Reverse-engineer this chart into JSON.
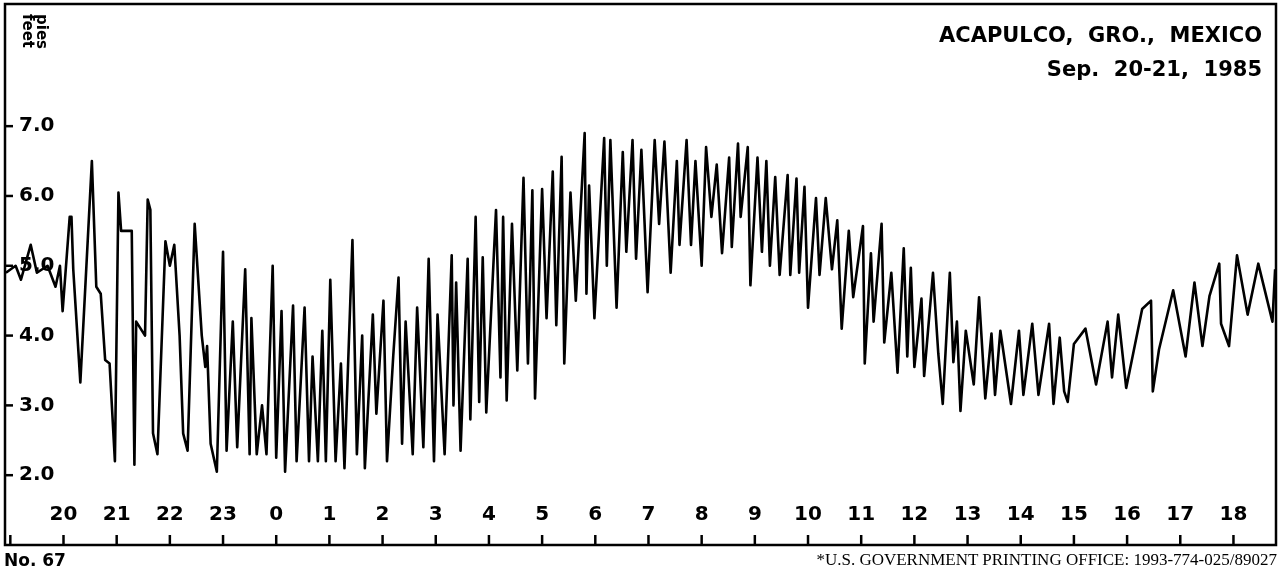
{
  "chart_data": {
    "type": "line",
    "title": "ACAPULCO,  GRO.,  MEXICO",
    "subtitle": "Sep.  20-21,  1985",
    "ylabel": "feet\npies",
    "annotations": [
      "No. 67",
      "*U.S. GOVERNMENT PRINTING OFFICE: 1993-774-025/89027"
    ],
    "color": "#000000",
    "xlim": [
      "1985-09-20T18:54",
      "1985-09-21T18:48"
    ],
    "xticks": [
      {
        "value": "1985-09-20T19:00",
        "label": null
      },
      {
        "value": "1985-09-20T20:00",
        "label": "20"
      },
      {
        "value": "1985-09-20T21:00",
        "label": "21"
      },
      {
        "value": "1985-09-20T22:00",
        "label": "22"
      },
      {
        "value": "1985-09-20T23:00",
        "label": "23"
      },
      {
        "value": "1985-09-21T00:00",
        "label": "0"
      },
      {
        "value": "1985-09-21T01:00",
        "label": "1"
      },
      {
        "value": "1985-09-21T02:00",
        "label": "2"
      },
      {
        "value": "1985-09-21T03:00",
        "label": "3"
      },
      {
        "value": "1985-09-21T04:00",
        "label": "4"
      },
      {
        "value": "1985-09-21T05:00",
        "label": "5"
      },
      {
        "value": "1985-09-21T06:00",
        "label": "6"
      },
      {
        "value": "1985-09-21T07:00",
        "label": "7"
      },
      {
        "value": "1985-09-21T08:00",
        "label": "8"
      },
      {
        "value": "1985-09-21T09:00",
        "label": "9"
      },
      {
        "value": "1985-09-21T10:00",
        "label": "10"
      },
      {
        "value": "1985-09-21T11:00",
        "label": "11"
      },
      {
        "value": "1985-09-21T12:00",
        "label": "12"
      },
      {
        "value": "1985-09-21T13:00",
        "label": "13"
      },
      {
        "value": "1985-09-21T14:00",
        "label": "14"
      },
      {
        "value": "1985-09-21T15:00",
        "label": "15"
      },
      {
        "value": "1985-09-21T16:00",
        "label": "16"
      },
      {
        "value": "1985-09-21T17:00",
        "label": "17"
      },
      {
        "value": "1985-09-21T18:00",
        "label": "18"
      }
    ],
    "ylim": [
      1,
      8.75
    ],
    "yticks": [
      {
        "value": 2,
        "label": "2.0"
      },
      {
        "value": 3,
        "label": "3.0"
      },
      {
        "value": 4,
        "label": "4.0"
      },
      {
        "value": 5,
        "label": "5.0"
      },
      {
        "value": 6,
        "label": "6.0"
      },
      {
        "value": 7,
        "label": "7.0"
      }
    ],
    "x": [
      "1985-09-20T18:55",
      "1985-09-20T19:06",
      "1985-09-20T19:12",
      "1985-09-20T19:23",
      "1985-09-20T19:30",
      "1985-09-20T19:42",
      "1985-09-20T19:51",
      "1985-09-20T19:56",
      "1985-09-20T19:59",
      "1985-09-20T20:07",
      "1985-09-20T20:09",
      "1985-09-20T20:11",
      "1985-09-20T20:19",
      "1985-09-20T20:32",
      "1985-09-20T20:37",
      "1985-09-20T20:42",
      "1985-09-20T20:47",
      "1985-09-20T20:52",
      "1985-09-20T20:58",
      "1985-09-20T21:02",
      "1985-09-20T21:05",
      "1985-09-20T21:17",
      "1985-09-20T21:20",
      "1985-09-20T21:22",
      "1985-09-20T21:32",
      "1985-09-20T21:35",
      "1985-09-20T21:38",
      "1985-09-20T21:41",
      "1985-09-20T21:46",
      "1985-09-20T21:55",
      "1985-09-20T22:00",
      "1985-09-20T22:05",
      "1985-09-20T22:11",
      "1985-09-20T22:15",
      "1985-09-20T22:20",
      "1985-09-20T22:28",
      "1985-09-20T22:36",
      "1985-09-20T22:40",
      "1985-09-20T22:42",
      "1985-09-20T22:46",
      "1985-09-20T22:53",
      "1985-09-20T23:00",
      "1985-09-20T23:04",
      "1985-09-20T23:11",
      "1985-09-20T23:16",
      "1985-09-20T23:25",
      "1985-09-20T23:30",
      "1985-09-20T23:32",
      "1985-09-20T23:38",
      "1985-09-20T23:44",
      "1985-09-20T23:49",
      "1985-09-20T23:56",
      "1985-09-21T00:00",
      "1985-09-21T00:06",
      "1985-09-21T00:10",
      "1985-09-21T00:19",
      "1985-09-21T00:23",
      "1985-09-21T00:32",
      "1985-09-21T00:37",
      "1985-09-21T00:41",
      "1985-09-21T00:47",
      "1985-09-21T00:52",
      "1985-09-21T00:56",
      "1985-09-21T01:01",
      "1985-09-21T01:07",
      "1985-09-21T01:13",
      "1985-09-21T01:17",
      "1985-09-21T01:26",
      "1985-09-21T01:31",
      "1985-09-21T01:37",
      "1985-09-21T01:40",
      "1985-09-21T01:49",
      "1985-09-21T01:53",
      "1985-09-21T02:01",
      "1985-09-21T02:05",
      "1985-09-21T02:12",
      "1985-09-21T02:18",
      "1985-09-21T02:22",
      "1985-09-21T02:26",
      "1985-09-21T02:34",
      "1985-09-21T02:39",
      "1985-09-21T02:46",
      "1985-09-21T02:52",
      "1985-09-21T02:58",
      "1985-09-21T03:02",
      "1985-09-21T03:10",
      "1985-09-21T03:18",
      "1985-09-21T03:20",
      "1985-09-21T03:23",
      "1985-09-21T03:28",
      "1985-09-21T03:36",
      "1985-09-21T03:39",
      "1985-09-21T03:45",
      "1985-09-21T03:49",
      "1985-09-21T03:53",
      "1985-09-21T03:57",
      "1985-09-21T04:08",
      "1985-09-21T04:13",
      "1985-09-21T04:16",
      "1985-09-21T04:20",
      "1985-09-21T04:26",
      "1985-09-21T04:32",
      "1985-09-21T04:39",
      "1985-09-21T04:44",
      "1985-09-21T04:49",
      "1985-09-21T04:52",
      "1985-09-21T05:00",
      "1985-09-21T05:05",
      "1985-09-21T05:12",
      "1985-09-21T05:16",
      "1985-09-21T05:22",
      "1985-09-21T05:25",
      "1985-09-21T05:32",
      "1985-09-21T05:38",
      "1985-09-21T05:48",
      "1985-09-21T05:50",
      "1985-09-21T05:53",
      "1985-09-21T05:59",
      "1985-09-21T06:10",
      "1985-09-21T06:13",
      "1985-09-21T06:17",
      "1985-09-21T06:24",
      "1985-09-21T06:31",
      "1985-09-21T06:35",
      "1985-09-21T06:42",
      "1985-09-21T06:46",
      "1985-09-21T06:52",
      "1985-09-21T06:59",
      "1985-09-21T07:07",
      "1985-09-21T07:12",
      "1985-09-21T07:18",
      "1985-09-21T07:25",
      "1985-09-21T07:32",
      "1985-09-21T07:35",
      "1985-09-21T07:43",
      "1985-09-21T07:48",
      "1985-09-21T07:53",
      "1985-09-21T08:00",
      "1985-09-21T08:05",
      "1985-09-21T08:11",
      "1985-09-21T08:17",
      "1985-09-21T08:23",
      "1985-09-21T08:31",
      "1985-09-21T08:34",
      "1985-09-21T08:41",
      "1985-09-21T08:44",
      "1985-09-21T08:52",
      "1985-09-21T08:55",
      "1985-09-21T09:03",
      "1985-09-21T09:08",
      "1985-09-21T09:13",
      "1985-09-21T09:17",
      "1985-09-21T09:23",
      "1985-09-21T09:28",
      "1985-09-21T09:37",
      "1985-09-21T09:40",
      "1985-09-21T09:47",
      "1985-09-21T09:50",
      "1985-09-21T09:56",
      "1985-09-21T10:00",
      "1985-09-21T10:09",
      "1985-09-21T10:13",
      "1985-09-21T10:20",
      "1985-09-21T10:27",
      "1985-09-21T10:33",
      "1985-09-21T10:38",
      "1985-09-21T10:46",
      "1985-09-21T10:51",
      "1985-09-21T11:02",
      "1985-09-21T11:04",
      "1985-09-21T11:11",
      "1985-09-21T11:14",
      "1985-09-21T11:23",
      "1985-09-21T11:26",
      "1985-09-21T11:34",
      "1985-09-21T11:41",
      "1985-09-21T11:48",
      "1985-09-21T11:52",
      "1985-09-21T11:56",
      "1985-09-21T12:00",
      "1985-09-21T12:08",
      "1985-09-21T12:11",
      "1985-09-21T12:21",
      "1985-09-21T12:27",
      "1985-09-21T12:32",
      "1985-09-21T12:40",
      "1985-09-21T12:44",
      "1985-09-21T12:48",
      "1985-09-21T12:52",
      "1985-09-21T12:58",
      "1985-09-21T13:07",
      "1985-09-21T13:13",
      "1985-09-21T13:20",
      "1985-09-21T13:27",
      "1985-09-21T13:31",
      "1985-09-21T13:37",
      "1985-09-21T13:49",
      "1985-09-21T13:58",
      "1985-09-21T14:03",
      "1985-09-21T14:13",
      "1985-09-21T14:20",
      "1985-09-21T14:32",
      "1985-09-21T14:37",
      "1985-09-21T14:44",
      "1985-09-21T14:49",
      "1985-09-21T14:53",
      "1985-09-21T15:00",
      "1985-09-21T15:13",
      "1985-09-21T15:25",
      "1985-09-21T15:38",
      "1985-09-21T15:43",
      "1985-09-21T15:50",
      "1985-09-21T15:59",
      "1985-09-21T16:17",
      "1985-09-21T16:27",
      "1985-09-21T16:29",
      "1985-09-21T16:36",
      "1985-09-21T16:52",
      "1985-09-21T17:06",
      "1985-09-21T17:16",
      "1985-09-21T17:25",
      "1985-09-21T17:33",
      "1985-09-21T17:44",
      "1985-09-21T17:46",
      "1985-09-21T17:55",
      "1985-09-21T18:04",
      "1985-09-21T18:16",
      "1985-09-21T18:28",
      "1985-09-21T18:44",
      "1985-09-21T18:47"
    ],
    "values": [
      4.9,
      5.0,
      4.8,
      5.3,
      4.9,
      5.0,
      4.7,
      5.0,
      4.35,
      5.7,
      5.7,
      4.95,
      3.33,
      6.5,
      4.7,
      4.6,
      3.65,
      3.6,
      2.2,
      6.05,
      5.5,
      5.5,
      2.15,
      4.2,
      4.0,
      5.95,
      5.8,
      2.6,
      2.3,
      5.35,
      5.0,
      5.3,
      4.0,
      2.6,
      2.35,
      5.6,
      4.0,
      3.55,
      3.85,
      2.45,
      2.05,
      5.2,
      2.35,
      4.2,
      2.4,
      4.95,
      2.3,
      4.25,
      2.3,
      3.0,
      2.3,
      5.0,
      2.25,
      4.35,
      2.05,
      4.43,
      2.2,
      4.4,
      2.2,
      3.7,
      2.2,
      4.07,
      2.2,
      4.8,
      2.2,
      3.6,
      2.1,
      5.37,
      2.3,
      4.0,
      2.1,
      4.3,
      2.88,
      4.5,
      2.2,
      3.7,
      4.83,
      2.45,
      4.2,
      2.3,
      4.4,
      2.4,
      5.1,
      2.2,
      4.3,
      2.3,
      5.15,
      3.0,
      4.76,
      2.35,
      5.1,
      2.8,
      5.7,
      3.05,
      5.12,
      2.9,
      5.8,
      3.4,
      5.7,
      3.07,
      5.6,
      3.5,
      6.26,
      3.6,
      6.08,
      3.1,
      6.1,
      4.25,
      6.35,
      4.15,
      6.56,
      3.6,
      6.05,
      4.5,
      6.9,
      4.6,
      6.15,
      4.25,
      6.83,
      5.0,
      6.8,
      4.4,
      6.63,
      5.2,
      6.8,
      5.1,
      6.66,
      4.62,
      6.8,
      5.6,
      6.78,
      4.9,
      6.5,
      5.3,
      6.8,
      5.3,
      6.5,
      5.0,
      6.7,
      5.7,
      6.45,
      5.18,
      6.55,
      5.27,
      6.75,
      5.7,
      6.7,
      4.72,
      6.55,
      5.2,
      6.5,
      5.0,
      6.27,
      4.87,
      6.3,
      4.87,
      6.25,
      4.9,
      6.13,
      4.4,
      5.97,
      4.87,
      5.97,
      4.95,
      5.65,
      4.1,
      5.5,
      4.55,
      5.57,
      3.6,
      5.18,
      4.2,
      5.6,
      3.9,
      4.9,
      3.47,
      5.25,
      3.7,
      4.97,
      3.55,
      4.53,
      3.42,
      4.9,
      3.74,
      3.02,
      4.9,
      3.62,
      4.2,
      2.92,
      4.07,
      3.3,
      4.55,
      3.1,
      4.03,
      3.15,
      4.07,
      3.02,
      4.07,
      3.15,
      4.17,
      3.15,
      4.17,
      3.02,
      3.97,
      3.2,
      3.05,
      3.88,
      4.1,
      3.3,
      4.2,
      3.4,
      4.3,
      3.25,
      4.38,
      4.5,
      3.2,
      3.8,
      4.65,
      3.7,
      4.76,
      3.85,
      4.57,
      5.03,
      4.17,
      3.85,
      5.15,
      4.3,
      5.03,
      4.2,
      4.95
    ]
  }
}
